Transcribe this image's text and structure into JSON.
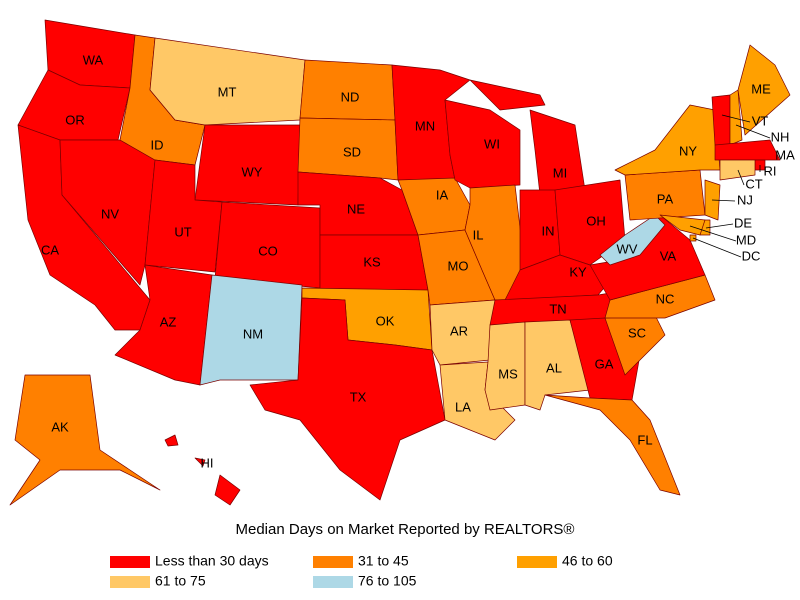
{
  "title": "Median Days on Market Reported by REALTORS®",
  "legend": [
    {
      "label": "Less than 30 days",
      "color": "#ff0000"
    },
    {
      "label": "31 to 45",
      "color": "#ff8000"
    },
    {
      "label": "46 to 60",
      "color": "#ffa000"
    },
    {
      "label": "61 to 75",
      "color": "#ffc866"
    },
    {
      "label": "76 to 105",
      "color": "#add8e6"
    }
  ],
  "regions": [
    {
      "label": "WA",
      "color": "#ff0000"
    },
    {
      "label": "OR",
      "color": "#ff0000"
    },
    {
      "label": "CA",
      "color": "#ff0000"
    },
    {
      "label": "NV",
      "color": "#ff0000"
    },
    {
      "label": "ID",
      "color": "#ff8000"
    },
    {
      "label": "MT",
      "color": "#ffc866"
    },
    {
      "label": "WY",
      "color": "#ff0000"
    },
    {
      "label": "UT",
      "color": "#ff0000"
    },
    {
      "label": "CO",
      "color": "#ff0000"
    },
    {
      "label": "AZ",
      "color": "#ff0000"
    },
    {
      "label": "NM",
      "color": "#add8e6"
    },
    {
      "label": "ND",
      "color": "#ff8000"
    },
    {
      "label": "SD",
      "color": "#ff8000"
    },
    {
      "label": "NE",
      "color": "#ff0000"
    },
    {
      "label": "KS",
      "color": "#ff0000"
    },
    {
      "label": "OK",
      "color": "#ffa000"
    },
    {
      "label": "TX",
      "color": "#ff0000"
    },
    {
      "label": "MN",
      "color": "#ff0000"
    },
    {
      "label": "IA",
      "color": "#ff8000"
    },
    {
      "label": "MO",
      "color": "#ff8000"
    },
    {
      "label": "AR",
      "color": "#ffc866"
    },
    {
      "label": "LA",
      "color": "#ffc866"
    },
    {
      "label": "WI",
      "color": "#ff0000"
    },
    {
      "label": "IL",
      "color": "#ff8000"
    },
    {
      "label": "MI",
      "color": "#ff0000"
    },
    {
      "label": "IN",
      "color": "#ff0000"
    },
    {
      "label": "OH",
      "color": "#ff0000"
    },
    {
      "label": "KY",
      "color": "#ff0000"
    },
    {
      "label": "TN",
      "color": "#ff0000"
    },
    {
      "label": "MS",
      "color": "#ffc866"
    },
    {
      "label": "AL",
      "color": "#ffc866"
    },
    {
      "label": "GA",
      "color": "#ff0000"
    },
    {
      "label": "FL",
      "color": "#ff8000"
    },
    {
      "label": "SC",
      "color": "#ff8000"
    },
    {
      "label": "NC",
      "color": "#ff8000"
    },
    {
      "label": "VA",
      "color": "#ff0000"
    },
    {
      "label": "WV",
      "color": "#add8e6"
    },
    {
      "label": "PA",
      "color": "#ff8000"
    },
    {
      "label": "NY",
      "color": "#ffa000"
    },
    {
      "label": "VT",
      "color": "#ff0000"
    },
    {
      "label": "NH",
      "color": "#ffa000"
    },
    {
      "label": "ME",
      "color": "#ffa000"
    },
    {
      "label": "MA",
      "color": "#ff0000"
    },
    {
      "label": "RI",
      "color": "#ff0000"
    },
    {
      "label": "CT",
      "color": "#ffc866"
    },
    {
      "label": "NJ",
      "color": "#ffa000"
    },
    {
      "label": "DE",
      "color": "#ffa000"
    },
    {
      "label": "MD",
      "color": "#ffa000"
    },
    {
      "label": "DC",
      "color": "#ffa000"
    },
    {
      "label": "AK",
      "color": "#ff8000"
    },
    {
      "label": "HI",
      "color": "#ff0000"
    }
  ]
}
